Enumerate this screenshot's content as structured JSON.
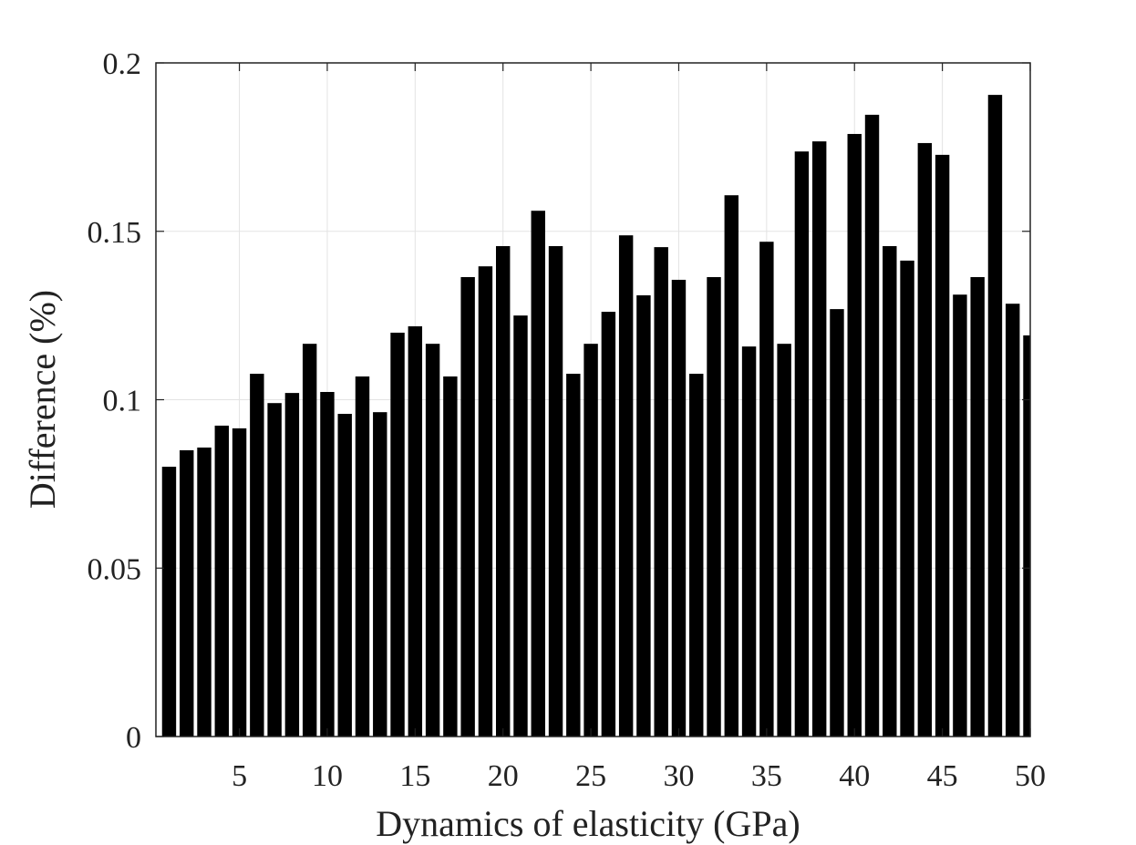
{
  "chart_data": {
    "type": "bar",
    "title": "",
    "xlabel": "Dynamics of elasticity (GPa)",
    "ylabel": "Difference (%)",
    "x": [
      1,
      2,
      3,
      4,
      5,
      6,
      7,
      8,
      9,
      10,
      11,
      12,
      13,
      14,
      15,
      16,
      17,
      18,
      19,
      20,
      21,
      22,
      23,
      24,
      25,
      26,
      27,
      28,
      29,
      30,
      31,
      32,
      33,
      34,
      35,
      36,
      37,
      38,
      39,
      40,
      41,
      42,
      43,
      44,
      45,
      46,
      47,
      48,
      49,
      50
    ],
    "values": [
      0.0801,
      0.085,
      0.0858,
      0.0923,
      0.0915,
      0.1077,
      0.099,
      0.102,
      0.1166,
      0.1023,
      0.0958,
      0.1069,
      0.0963,
      0.1199,
      0.1218,
      0.1166,
      0.1069,
      0.1364,
      0.1396,
      0.1456,
      0.125,
      0.1561,
      0.1456,
      0.1077,
      0.1166,
      0.1261,
      0.1488,
      0.131,
      0.1453,
      0.1356,
      0.1077,
      0.1364,
      0.1607,
      0.1158,
      0.1469,
      0.1166,
      0.1737,
      0.1767,
      0.1269,
      0.1789,
      0.1846,
      0.1456,
      0.1413,
      0.1762,
      0.1727,
      0.1312,
      0.1364,
      0.1905,
      0.1285,
      0.1191
    ],
    "xlim": [
      0.25,
      50
    ],
    "ylim": [
      0,
      0.2
    ],
    "xticks": [
      "5",
      "10",
      "15",
      "20",
      "25",
      "30",
      "35",
      "40",
      "45",
      "50"
    ],
    "xtick_values": [
      5,
      10,
      15,
      20,
      25,
      30,
      35,
      40,
      45,
      50
    ],
    "yticks": [
      "0",
      "0.05",
      "0.1",
      "0.15",
      "0.2"
    ],
    "ytick_values": [
      0,
      0.05,
      0.1,
      0.15,
      0.2
    ],
    "grid": true,
    "bar_color": "#000000"
  }
}
